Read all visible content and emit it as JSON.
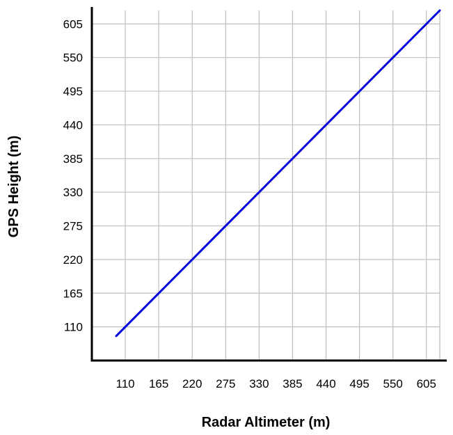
{
  "chart_data": {
    "type": "line",
    "title": "",
    "xlabel": "Radar Altimeter (m)",
    "ylabel": "GPS Height (m)",
    "xlim": [
      55,
      627
    ],
    "ylim": [
      55,
      627
    ],
    "x_ticks": [
      110,
      165,
      220,
      275,
      330,
      385,
      440,
      495,
      550,
      605
    ],
    "y_ticks": [
      110,
      165,
      220,
      275,
      330,
      385,
      440,
      495,
      550,
      605
    ],
    "grid": true,
    "legend": "none",
    "series": [
      {
        "color": "#0000dd",
        "x": [
          95,
          627
        ],
        "y": [
          95,
          627
        ]
      }
    ]
  }
}
